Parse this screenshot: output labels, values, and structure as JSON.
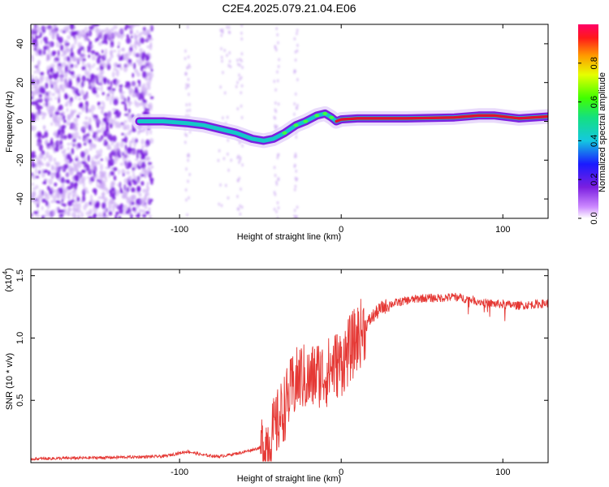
{
  "title": "C2E4.2025.079.21.04.E06",
  "colors": {
    "snr_line": "#e53935",
    "track_low": "#7b1fe0",
    "track_mid": "#14c8c8",
    "track_high": "#e01030"
  },
  "chart_data": [
    {
      "type": "heatmap",
      "xlabel": "Height of straight line (km)",
      "ylabel": "Frequency (Hz)",
      "xlim": [
        -192,
        128
      ],
      "ylim": [
        -50,
        50
      ],
      "x_ticks": [
        -100,
        0,
        100
      ],
      "x_tick_labels": [
        "-100",
        "0",
        "100"
      ],
      "y_ticks": [
        -40,
        -20,
        0,
        20,
        40
      ],
      "y_tick_labels": [
        "-40",
        "-20",
        "0",
        "20",
        "40"
      ],
      "colorbar": {
        "label": "Normalized spectral amplitude",
        "range": [
          0,
          1
        ],
        "ticks": [
          0.0,
          0.2,
          0.4,
          0.6,
          0.8
        ],
        "tick_labels": [
          "0.0",
          "0.2",
          "0.4",
          "0.6",
          "0.8"
        ]
      },
      "ridge": {
        "x": [
          -125,
          -110,
          -95,
          -85,
          -75,
          -65,
          -55,
          -48,
          -42,
          -35,
          -28,
          -22,
          -15,
          -10,
          -6,
          -3,
          0,
          10,
          40,
          70,
          85,
          95,
          110,
          128
        ],
        "y": [
          0,
          0,
          -1,
          -2,
          -4,
          -6,
          -9,
          -10,
          -9,
          -6,
          -2,
          0,
          3,
          4,
          2,
          0,
          1,
          1.5,
          1.5,
          2,
          3,
          3,
          1.5,
          2.5
        ],
        "amplitude": [
          0.3,
          0.35,
          0.35,
          0.4,
          0.4,
          0.45,
          0.45,
          0.45,
          0.45,
          0.5,
          0.6,
          0.7,
          0.75,
          0.8,
          0.8,
          0.85,
          0.85,
          0.9,
          0.95,
          0.95,
          0.95,
          0.95,
          0.9,
          0.9
        ]
      }
    },
    {
      "type": "line",
      "xlabel": "Height of straight line (km)",
      "ylabel": "SNR (10 * v/v)",
      "y_multiplier": "(x10",
      "y_multiplier_exp": "4",
      "xlim": [
        -192,
        128
      ],
      "ylim": [
        0,
        1.55
      ],
      "x_ticks": [
        -100,
        0,
        100
      ],
      "x_tick_labels": [
        "-100",
        "0",
        "100"
      ],
      "y_ticks": [
        0.5,
        1.0,
        1.5
      ],
      "y_tick_labels": [
        "0.5",
        "1.0",
        "1.5"
      ],
      "series": [
        {
          "x": [
            -192,
            -150,
            -110,
            -95,
            -85,
            -75,
            -62,
            -50,
            -44,
            -40,
            -35,
            -30,
            -25,
            -20,
            -15,
            -10,
            -5,
            0,
            5,
            10,
            15,
            20,
            25,
            30,
            40,
            50,
            60,
            70,
            80,
            90,
            100,
            110,
            120,
            128
          ],
          "y": [
            0.03,
            0.04,
            0.05,
            0.09,
            0.06,
            0.05,
            0.08,
            0.12,
            0.18,
            0.3,
            0.45,
            0.6,
            0.7,
            0.65,
            0.72,
            0.7,
            0.78,
            0.8,
            0.9,
            1.0,
            1.1,
            1.18,
            1.24,
            1.27,
            1.3,
            1.32,
            1.32,
            1.33,
            1.31,
            1.28,
            1.27,
            1.26,
            1.27,
            1.28
          ]
        }
      ]
    }
  ]
}
